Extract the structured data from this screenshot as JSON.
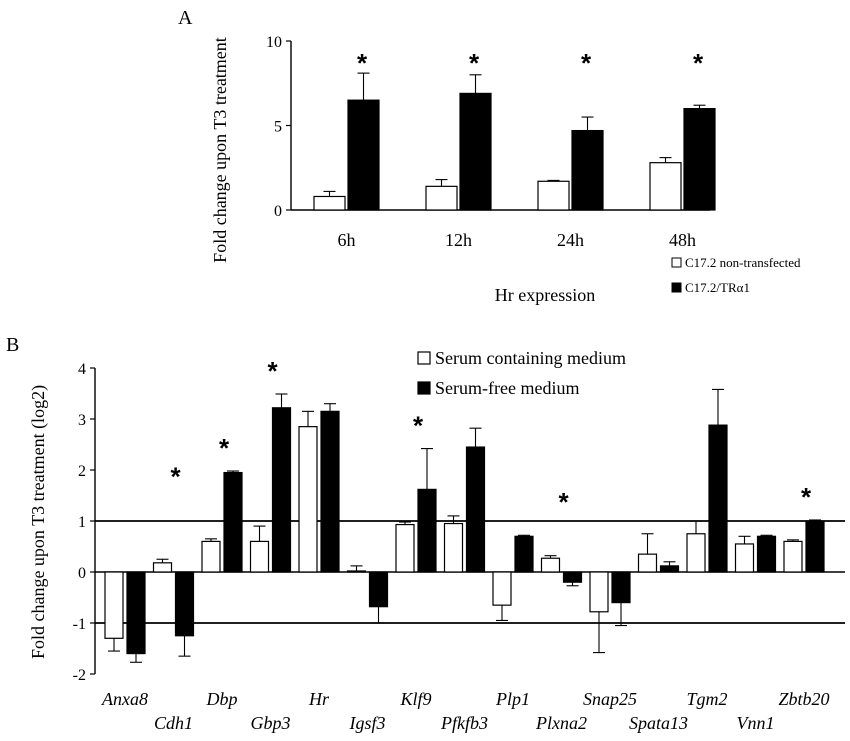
{
  "colors": {
    "serie_open": "#ffffff",
    "serie_filled": "#000000",
    "ink": "#000000"
  },
  "chart_data": [
    {
      "type": "bar",
      "panel_label": "A",
      "title": "",
      "xlabel": "Hr expression",
      "ylabel": "Fold change upon T3 treatment",
      "ylim": [
        0,
        10
      ],
      "yticks": [
        0,
        5,
        10
      ],
      "grid": false,
      "legend_position": "bottom-right",
      "categories": [
        "6h",
        "12h",
        "24h",
        "48h"
      ],
      "series": [
        {
          "name": "C17.2 non-transfected",
          "fill": "open",
          "values": [
            0.8,
            1.4,
            1.7,
            2.8
          ],
          "errors": [
            0.3,
            0.4,
            0.05,
            0.3
          ]
        },
        {
          "name": "C17.2/TRα1",
          "fill": "filled",
          "values": [
            6.5,
            6.9,
            4.7,
            6.0
          ],
          "errors": [
            1.6,
            1.1,
            0.8,
            0.2
          ]
        }
      ],
      "significance": [
        "*",
        "*",
        "*",
        "*"
      ]
    },
    {
      "type": "bar",
      "panel_label": "B",
      "title": "",
      "xlabel": "",
      "ylabel": "Fold change upon T3 treatment (log2)",
      "ylim": [
        -2,
        4
      ],
      "yticks": [
        -2,
        -1,
        0,
        1,
        2,
        3,
        4
      ],
      "grid": false,
      "reference_lines": [
        1,
        -1
      ],
      "legend_position": "top-center",
      "categories": [
        "Anxa8",
        "Cdh1",
        "Dbp",
        "Gbp3",
        "Hr",
        "Igsf3",
        "Klf9",
        "Pfkfb3",
        "Plp1",
        "Plxna2",
        "Snap25",
        "Spata13",
        "Tgm2",
        "Vnn1",
        "Zbtb20"
      ],
      "series": [
        {
          "name": "Serum containing medium",
          "fill": "open",
          "values": [
            -1.3,
            0.18,
            0.6,
            0.6,
            2.85,
            0.02,
            0.93,
            0.95,
            -0.65,
            0.27,
            -0.78,
            0.35,
            0.75,
            0.55,
            0.6
          ],
          "errors": [
            0.25,
            0.07,
            0.05,
            0.3,
            0.3,
            0.1,
            0.05,
            0.15,
            0.3,
            0.05,
            0.8,
            0.4,
            0.25,
            0.15,
            0.03
          ]
        },
        {
          "name": "Serum-free medium",
          "fill": "filled",
          "values": [
            -1.6,
            -1.25,
            1.95,
            3.22,
            3.15,
            -0.68,
            1.62,
            2.45,
            0.7,
            -0.2,
            -0.6,
            0.12,
            2.88,
            0.7,
            1.0
          ],
          "errors": [
            0.17,
            0.4,
            0.03,
            0.27,
            0.15,
            0.32,
            0.8,
            0.37,
            0.02,
            0.07,
            0.45,
            0.08,
            0.7,
            0.02,
            0.02
          ]
        }
      ],
      "significance": [
        "",
        "*",
        "*",
        "*",
        "",
        "",
        "*",
        "",
        "",
        "*",
        "",
        "",
        "",
        "",
        "*"
      ]
    }
  ]
}
